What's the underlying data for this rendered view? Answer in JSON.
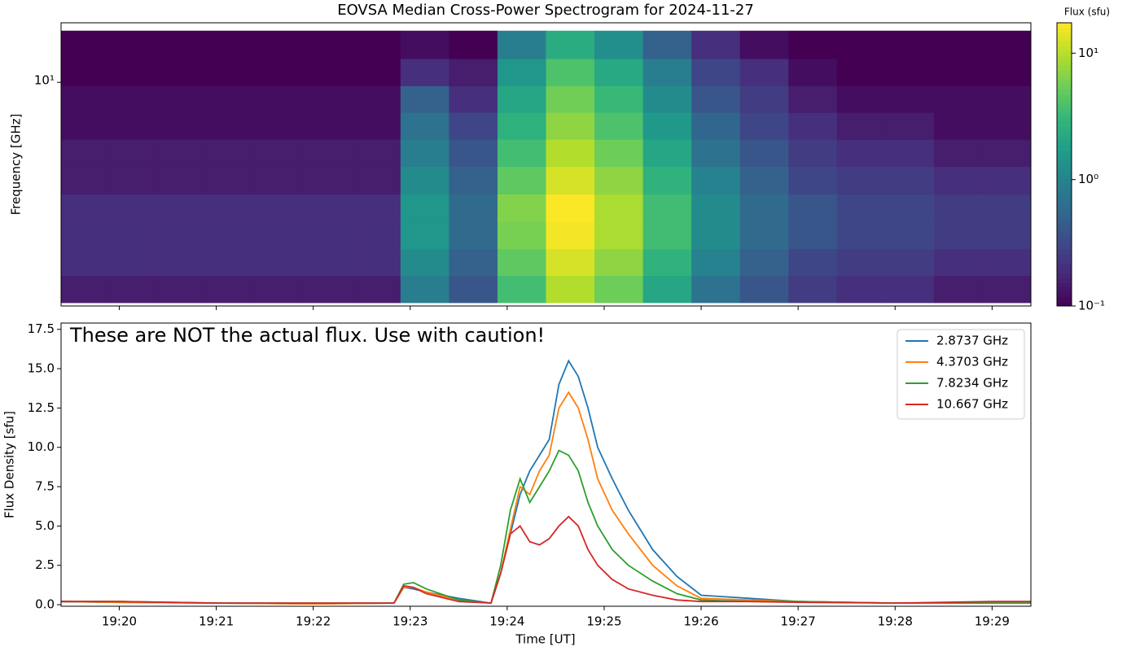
{
  "chart_data": [
    {
      "type": "heatmap",
      "title": "EOVSA Median Cross-Power Spectrogram for 2024-11-27",
      "ylabel": "Frequency [GHz]",
      "ylog": true,
      "ylim": [
        1.1,
        18
      ],
      "yticks": [
        {
          "value": 10,
          "label": "10¹"
        }
      ],
      "xlim": [
        "19:19:24",
        "19:29:24"
      ],
      "xticks": [
        "19:20",
        "19:21",
        "19:22",
        "19:23",
        "19:24",
        "19:25",
        "19:26",
        "19:27",
        "19:28",
        "19:29"
      ],
      "times": [
        "19:19:39",
        "19:20:09",
        "19:20:39",
        "19:21:09",
        "19:21:39",
        "19:22:09",
        "19:22:39",
        "19:23:09",
        "19:23:39",
        "19:24:09",
        "19:24:39",
        "19:25:09",
        "19:25:39",
        "19:26:09",
        "19:26:39",
        "19:27:09",
        "19:27:39",
        "19:28:09",
        "19:28:39",
        "19:29:09"
      ],
      "frequencies": [
        1.3,
        1.7,
        2.2,
        2.9,
        3.8,
        5,
        6.5,
        8.5,
        11,
        14.5
      ],
      "values": [
        [
          0.15,
          0.15,
          0.15,
          0.15,
          0.15,
          0.15,
          0.15,
          0.9,
          0.4,
          3.6,
          9.6,
          5.4,
          2.1,
          0.7,
          0.4,
          0.25,
          0.2,
          0.2,
          0.15,
          0.15
        ],
        [
          0.2,
          0.2,
          0.2,
          0.2,
          0.2,
          0.2,
          0.2,
          1.2,
          0.5,
          4.8,
          12.8,
          7.2,
          2.8,
          1.0,
          0.5,
          0.3,
          0.25,
          0.25,
          0.2,
          0.2
        ],
        [
          0.2,
          0.2,
          0.2,
          0.2,
          0.2,
          0.2,
          0.2,
          1.5,
          0.6,
          6,
          16,
          9,
          3.5,
          1.2,
          0.6,
          0.4,
          0.3,
          0.3,
          0.25,
          0.25
        ],
        [
          0.2,
          0.2,
          0.2,
          0.2,
          0.2,
          0.2,
          0.2,
          1.5,
          0.6,
          6.5,
          17,
          9,
          3.5,
          1.2,
          0.6,
          0.4,
          0.3,
          0.3,
          0.25,
          0.25
        ],
        [
          0.15,
          0.15,
          0.15,
          0.15,
          0.15,
          0.15,
          0.15,
          1.2,
          0.5,
          4.8,
          12.8,
          7.2,
          2.8,
          1.0,
          0.5,
          0.3,
          0.25,
          0.25,
          0.2,
          0.2
        ],
        [
          0.15,
          0.15,
          0.15,
          0.15,
          0.15,
          0.15,
          0.15,
          0.9,
          0.4,
          3.6,
          9.6,
          5.4,
          2.1,
          0.7,
          0.4,
          0.25,
          0.2,
          0.2,
          0.15,
          0.15
        ],
        [
          0.12,
          0.12,
          0.12,
          0.12,
          0.12,
          0.12,
          0.12,
          0.7,
          0.3,
          2.7,
          7.2,
          4,
          1.6,
          0.55,
          0.3,
          0.2,
          0.15,
          0.15,
          0.12,
          0.12
        ],
        [
          0.12,
          0.12,
          0.12,
          0.12,
          0.12,
          0.12,
          0.12,
          0.5,
          0.2,
          2.1,
          5.6,
          3.2,
          1.2,
          0.4,
          0.25,
          0.15,
          0.12,
          0.12,
          0.12,
          0.12
        ],
        [
          0.1,
          0.1,
          0.1,
          0.1,
          0.1,
          0.1,
          0.1,
          0.2,
          0.15,
          1.5,
          4,
          2.2,
          0.9,
          0.3,
          0.2,
          0.12,
          0.1,
          0.1,
          0.1,
          0.1
        ],
        [
          0.1,
          0.1,
          0.1,
          0.1,
          0.1,
          0.1,
          0.1,
          0.12,
          0.1,
          0.9,
          2.4,
          1.3,
          0.5,
          0.2,
          0.12,
          0.1,
          0.1,
          0.1,
          0.1,
          0.1
        ]
      ],
      "colorbar": {
        "label": "Flux (sfu)",
        "log": true,
        "lim": [
          0.1,
          17.4
        ],
        "ticks": [
          {
            "value": 0.1,
            "label": "10⁻¹"
          },
          {
            "value": 1,
            "label": "10⁰"
          },
          {
            "value": 10,
            "label": "10¹"
          }
        ]
      }
    },
    {
      "type": "line",
      "annotation": "These are NOT the actual flux. Use with caution!",
      "xlabel": "Time [UT]",
      "ylabel": "Flux Density [sfu]",
      "xlim": [
        "19:19:24",
        "19:29:24"
      ],
      "xticks": [
        "19:20",
        "19:21",
        "19:22",
        "19:23",
        "19:24",
        "19:25",
        "19:26",
        "19:27",
        "19:28",
        "19:29"
      ],
      "ylim": [
        -0.1,
        17.9
      ],
      "yticks": [
        {
          "value": 0,
          "label": "0.0"
        },
        2.5,
        {
          "value": 5,
          "label": "5.0"
        },
        7.5,
        {
          "value": 10,
          "label": "10.0"
        },
        12.5,
        {
          "value": 15,
          "label": "15.0"
        },
        17.5
      ],
      "legend": "upper right",
      "x": [
        "19:19:24",
        "19:20:00",
        "19:21:00",
        "19:22:00",
        "19:22:50",
        "19:22:56",
        "19:23:02",
        "19:23:10",
        "19:23:30",
        "19:23:50",
        "19:23:56",
        "19:24:02",
        "19:24:08",
        "19:24:14",
        "19:24:20",
        "19:24:26",
        "19:24:32",
        "19:24:38",
        "19:24:44",
        "19:24:50",
        "19:24:56",
        "19:25:05",
        "19:25:15",
        "19:25:30",
        "19:25:45",
        "19:26:00",
        "19:26:30",
        "19:27:00",
        "19:28:00",
        "19:29:00",
        "19:29:24"
      ],
      "series": [
        {
          "name": "2.8737 GHz",
          "color": "#1f77b4",
          "values": [
            0.2,
            0.15,
            0.1,
            0.05,
            0.1,
            1.1,
            1.0,
            0.8,
            0.4,
            0.1,
            2.0,
            4.5,
            7.0,
            8.5,
            9.5,
            10.5,
            14.0,
            15.5,
            14.5,
            12.5,
            10.0,
            8.0,
            6.0,
            3.5,
            1.8,
            0.6,
            0.4,
            0.2,
            0.1,
            0.1,
            0.1
          ]
        },
        {
          "name": "4.3703 GHz",
          "color": "#ff7f0e",
          "values": [
            0.2,
            0.15,
            0.1,
            0.05,
            0.1,
            1.1,
            1.1,
            0.8,
            0.3,
            0.1,
            2.0,
            4.8,
            7.5,
            7.0,
            8.5,
            9.5,
            12.5,
            13.5,
            12.5,
            10.5,
            8.0,
            6.0,
            4.5,
            2.5,
            1.2,
            0.4,
            0.3,
            0.2,
            0.1,
            0.1,
            0.1
          ]
        },
        {
          "name": "7.8234 GHz",
          "color": "#2ca02c",
          "values": [
            0.2,
            0.2,
            0.1,
            0.1,
            0.1,
            1.3,
            1.4,
            1.0,
            0.3,
            0.1,
            2.5,
            6.0,
            8.0,
            6.5,
            7.5,
            8.5,
            9.8,
            9.5,
            8.5,
            6.5,
            5.0,
            3.5,
            2.5,
            1.5,
            0.7,
            0.3,
            0.2,
            0.2,
            0.1,
            0.1,
            0.1
          ]
        },
        {
          "name": "10.667 GHz",
          "color": "#d62728",
          "values": [
            0.2,
            0.2,
            0.1,
            0.1,
            0.1,
            1.2,
            1.1,
            0.7,
            0.2,
            0.1,
            2.0,
            4.5,
            5.0,
            4.0,
            3.8,
            4.2,
            5.0,
            5.6,
            5.0,
            3.5,
            2.5,
            1.6,
            1.0,
            0.6,
            0.3,
            0.2,
            0.2,
            0.15,
            0.1,
            0.2,
            0.2
          ]
        }
      ]
    }
  ]
}
